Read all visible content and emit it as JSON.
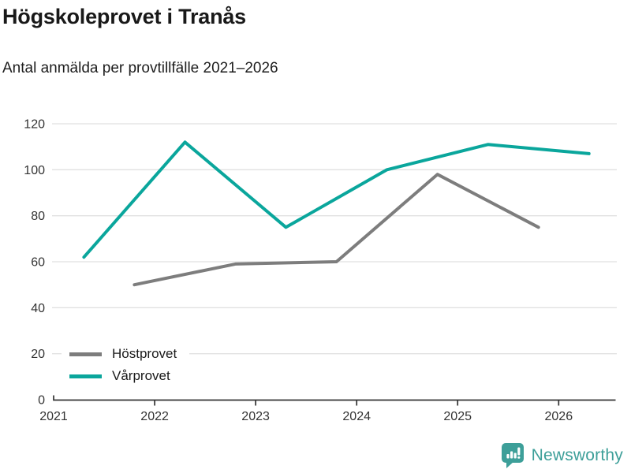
{
  "chart_data": {
    "type": "line",
    "title": "Högskoleprovet i Tranås",
    "subtitle": "Antal anmälda per provtillfälle 2021–2026",
    "series": [
      {
        "name": "Höstprovet",
        "color": "#7d7d7d",
        "x": [
          2021.8,
          2022.8,
          2023.8,
          2024.8,
          2025.8
        ],
        "values": [
          50,
          59,
          60,
          98,
          75
        ]
      },
      {
        "name": "Vårprovet",
        "color": "#0aa69c",
        "x": [
          2021.3,
          2022.3,
          2023.3,
          2024.3,
          2025.3,
          2026.3
        ],
        "values": [
          62,
          112,
          75,
          100,
          111,
          107
        ]
      }
    ],
    "xticks": [
      2021,
      2022,
      2023,
      2024,
      2025,
      2026
    ],
    "yticks": [
      0,
      20,
      40,
      60,
      80,
      100,
      120
    ],
    "xlim": [
      2021,
      2026.56
    ],
    "ylim": [
      0,
      120
    ],
    "xlabel": "",
    "ylabel": "",
    "grid": "horizontal",
    "legend_position": "inside-bottom-left"
  },
  "footer": {
    "brand": "Newsworthy",
    "brand_color": "#3d9f99",
    "logo_icon": "bar-chart-speech-bubble-icon"
  },
  "colors": {
    "grid": "#e1e1e1",
    "axis": "#333333",
    "title_text": "#191919"
  }
}
